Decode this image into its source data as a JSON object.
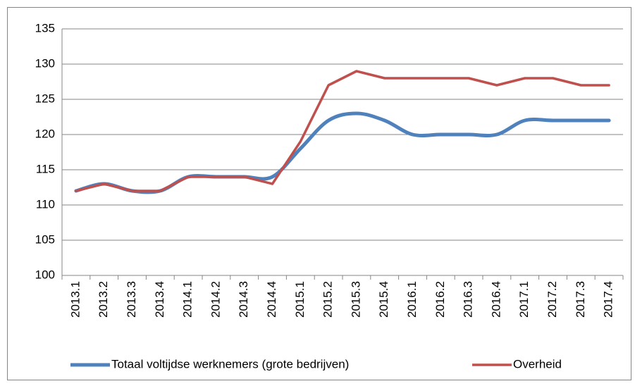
{
  "chart_data": {
    "type": "line",
    "categories": [
      "2013.1",
      "2013.2",
      "2013.3",
      "2013.4",
      "2014.1",
      "2014.2",
      "2014.3",
      "2014.4",
      "2015.1",
      "2015.2",
      "2015.3",
      "2015.4",
      "2016.1",
      "2016.2",
      "2016.3",
      "2016.4",
      "2017.1",
      "2017.2",
      "2017.3",
      "2017.4"
    ],
    "series": [
      {
        "name": "Totaal voltijdse werknemers (grote bedrijven)",
        "color": "#4f81bd",
        "smooth": true,
        "values": [
          112,
          113,
          112,
          112,
          114,
          114,
          114,
          114,
          118,
          122,
          123,
          122,
          120,
          120,
          120,
          120,
          122,
          122,
          122,
          122
        ]
      },
      {
        "name": "Overheid",
        "color": "#c0504d",
        "smooth": false,
        "values": [
          112,
          113,
          112,
          112,
          114,
          114,
          114,
          113,
          119,
          127,
          129,
          128,
          128,
          128,
          128,
          127,
          128,
          128,
          127,
          127
        ]
      }
    ],
    "ylim": [
      100,
      135
    ],
    "yticks": [
      100,
      105,
      110,
      115,
      120,
      125,
      130,
      135
    ],
    "grid": true,
    "legend": "bottom"
  }
}
